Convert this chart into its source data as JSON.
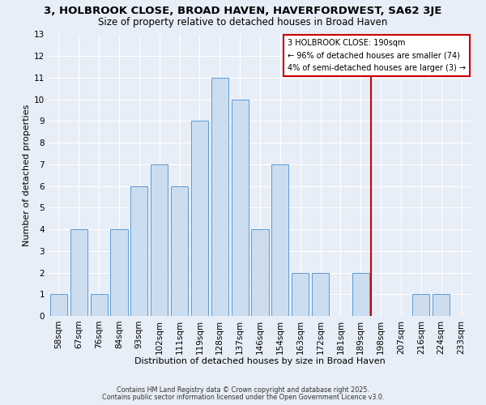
{
  "title": "3, HOLBROOK CLOSE, BROAD HAVEN, HAVERFORDWEST, SA62 3JE",
  "subtitle": "Size of property relative to detached houses in Broad Haven",
  "xlabel": "Distribution of detached houses by size in Broad Haven",
  "ylabel": "Number of detached properties",
  "bin_labels": [
    "58sqm",
    "67sqm",
    "76sqm",
    "84sqm",
    "93sqm",
    "102sqm",
    "111sqm",
    "119sqm",
    "128sqm",
    "137sqm",
    "146sqm",
    "154sqm",
    "163sqm",
    "172sqm",
    "181sqm",
    "189sqm",
    "198sqm",
    "207sqm",
    "216sqm",
    "224sqm",
    "233sqm"
  ],
  "bar_heights": [
    1,
    4,
    1,
    4,
    6,
    7,
    6,
    9,
    11,
    10,
    4,
    7,
    2,
    2,
    0,
    2,
    0,
    0,
    1,
    1,
    0
  ],
  "bar_color": "#ccddf0",
  "bar_edge_color": "#5b9bd5",
  "highlight_bar_index": 15,
  "highlight_line_color": "#cc0000",
  "ylim": [
    0,
    13
  ],
  "yticks": [
    0,
    1,
    2,
    3,
    4,
    5,
    6,
    7,
    8,
    9,
    10,
    11,
    12,
    13
  ],
  "annotation_title": "3 HOLBROOK CLOSE: 190sqm",
  "annotation_line1": "← 96% of detached houses are smaller (74)",
  "annotation_line2": "4% of semi-detached houses are larger (3) →",
  "footer1": "Contains HM Land Registry data © Crown copyright and database right 2025.",
  "footer2": "Contains public sector information licensed under the Open Government Licence v3.0.",
  "background_color": "#e8eef7",
  "plot_background_color": "#e8eef7",
  "grid_color": "#ffffff",
  "title_fontsize": 9.5,
  "subtitle_fontsize": 8.5,
  "axis_label_fontsize": 8,
  "tick_fontsize": 7.5,
  "annotation_fontsize": 7,
  "annotation_box_edge_color": "#cc0000",
  "footer_fontsize": 5.8,
  "bar_width": 0.85
}
